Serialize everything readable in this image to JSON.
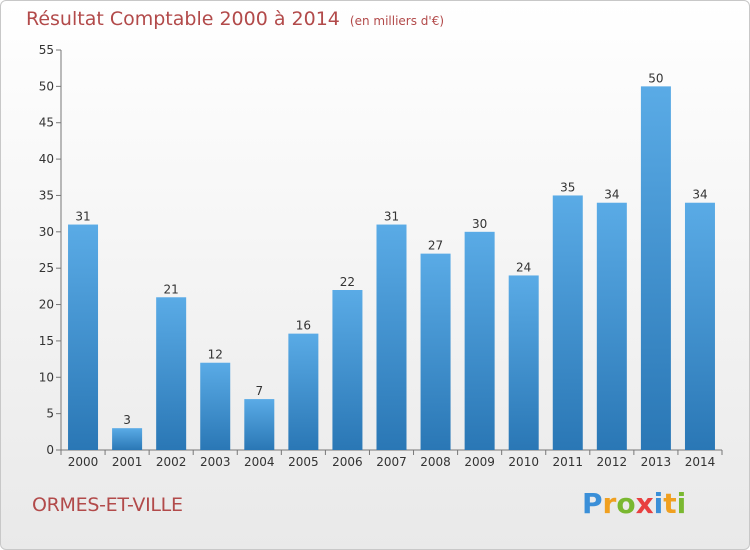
{
  "header": {
    "title": "Résultat Comptable 2000 à 2014",
    "subtitle": "(en milliers d'€)"
  },
  "footer": {
    "commune": "ORMES-ET-VILLE",
    "brand_letters": [
      "P",
      "r",
      "o",
      "x",
      "i",
      "t",
      "i"
    ]
  },
  "colors": {
    "title": "#b24a4a",
    "bar_top": "#5aabe6",
    "bar_bottom": "#2a77b5",
    "brand": [
      "#3a8fd8",
      "#f0a020",
      "#7ab830",
      "#e84040",
      "#3a8fd8",
      "#f0a020",
      "#7ab830"
    ]
  },
  "chart_data": {
    "type": "bar",
    "title": "Résultat Comptable 2000 à 2014",
    "subtitle": "(en milliers d'€)",
    "categories": [
      "2000",
      "2001",
      "2002",
      "2003",
      "2004",
      "2005",
      "2006",
      "2007",
      "2008",
      "2009",
      "2010",
      "2011",
      "2012",
      "2013",
      "2014"
    ],
    "values": [
      31,
      3,
      21,
      12,
      7,
      16,
      22,
      31,
      27,
      30,
      24,
      35,
      34,
      50,
      34
    ],
    "ylim": [
      0,
      55
    ],
    "yticks": [
      0,
      5,
      10,
      15,
      20,
      25,
      30,
      35,
      40,
      45,
      50,
      55
    ],
    "grid": false,
    "xlabel": "",
    "ylabel": ""
  }
}
